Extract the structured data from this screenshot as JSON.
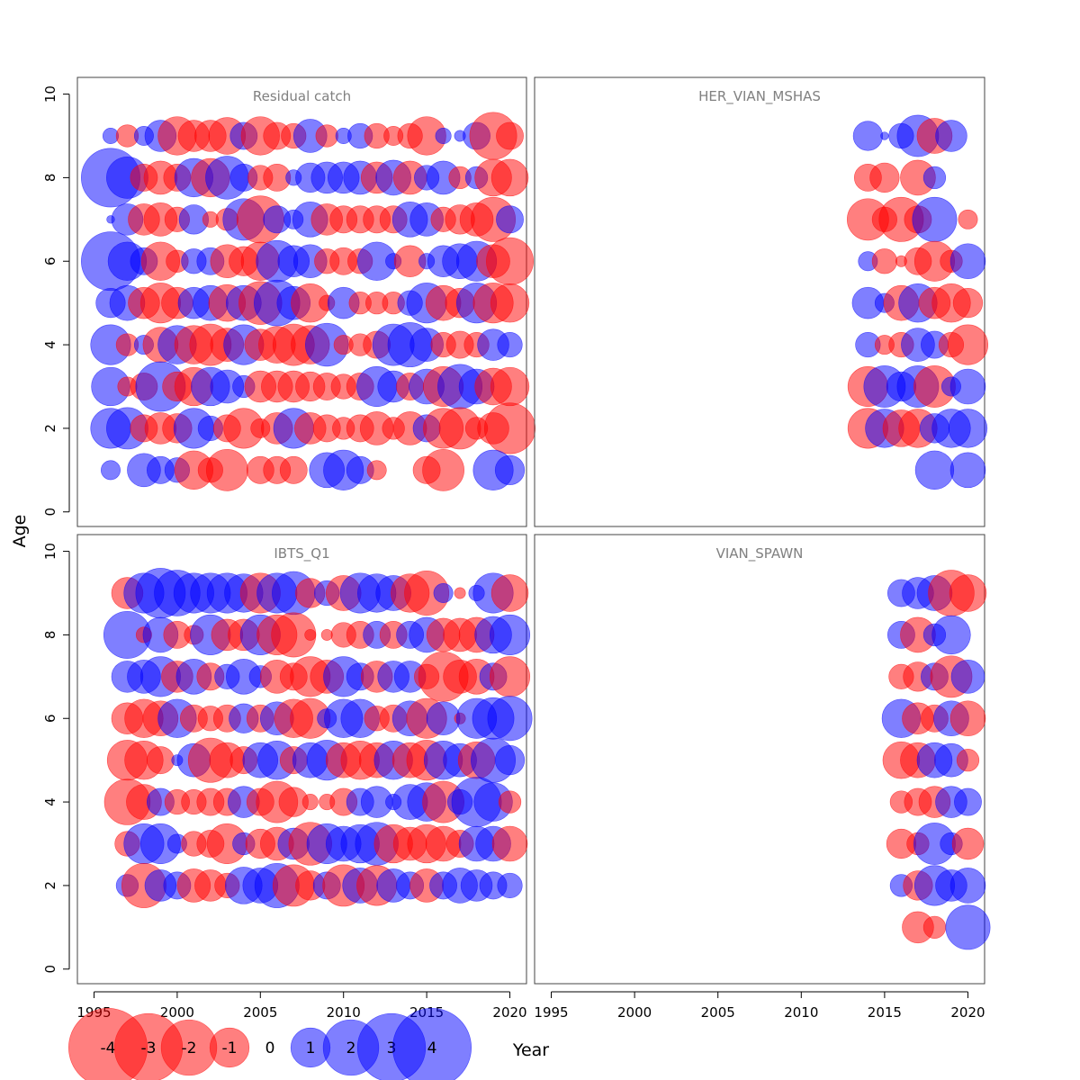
{
  "figure": {
    "y_axis_label": "Age",
    "x_axis_label": "Year",
    "colors": {
      "negative": "#ff0000",
      "positive": "#0000ff",
      "bubble_opacity": 0.5,
      "panel_title": "#808080",
      "frame": "#444444"
    }
  },
  "chart_data": {
    "type": "scatter",
    "subtype": "bubble",
    "xlim": [
      1994,
      2021
    ],
    "ylim": [
      0,
      10
    ],
    "x_ticks": [
      1995,
      2000,
      2005,
      2010,
      2015,
      2020
    ],
    "y_ticks": [
      0,
      2,
      4,
      6,
      8,
      10
    ],
    "grid": false,
    "legend": {
      "position": "bottom-left",
      "entries": [
        {
          "label": "-4",
          "value": -4
        },
        {
          "label": "-3",
          "value": -3
        },
        {
          "label": "-2",
          "value": -2
        },
        {
          "label": "-1",
          "value": -1
        },
        {
          "label": "0",
          "value": 0
        },
        {
          "label": "1",
          "value": 1
        },
        {
          "label": "2",
          "value": 2
        },
        {
          "label": "3",
          "value": 3
        },
        {
          "label": "4",
          "value": 4
        }
      ]
    },
    "panels": [
      {
        "title": "Residual catch",
        "years": [
          1996,
          1997,
          1998,
          1999,
          2000,
          2001,
          2002,
          2003,
          2004,
          2005,
          2006,
          2007,
          2008,
          2009,
          2010,
          2011,
          2012,
          2013,
          2014,
          2015,
          2016,
          2017,
          2018,
          2019,
          2020
        ],
        "ages": {
          "9": [
            0.2,
            -0.4,
            0.3,
            0.8,
            -1.2,
            -0.8,
            -0.8,
            -1.1,
            0.6,
            -1.2,
            -0.6,
            -0.5,
            0.9,
            -0.4,
            0.2,
            0.5,
            -0.5,
            -0.3,
            -0.5,
            -1.2,
            0.2,
            0.1,
            0.6,
            -1.8,
            -0.6
          ],
          "8": [
            2.8,
            1.4,
            -0.6,
            -0.9,
            -0.6,
            1.2,
            -1.2,
            1.5,
            0.6,
            -0.5,
            -0.6,
            0.2,
            0.7,
            0.8,
            0.8,
            0.9,
            -0.8,
            1.0,
            -0.9,
            0.5,
            0.9,
            -0.4,
            0.4,
            -1.1,
            -1.1
          ],
          "7": [
            0.05,
            0.8,
            -0.8,
            -0.9,
            -0.5,
            0.7,
            -0.2,
            -0.4,
            1.4,
            -1.8,
            0.6,
            0.3,
            1.0,
            -0.8,
            -0.6,
            -0.6,
            -0.6,
            -0.6,
            1.0,
            0.9,
            -0.5,
            -0.7,
            -0.9,
            -1.6,
            0.6
          ],
          "6": [
            2.8,
            1.2,
            0.6,
            -1.2,
            -0.4,
            0.5,
            0.6,
            -0.9,
            -0.7,
            -1.2,
            1.4,
            0.8,
            0.9,
            -0.5,
            -0.6,
            -0.5,
            1.2,
            0.2,
            -0.8,
            0.2,
            0.8,
            1.0,
            1.3,
            -0.9,
            -1.8
          ],
          "5": [
            0.7,
            1.0,
            -0.8,
            -1.3,
            -0.8,
            0.8,
            1.0,
            -1.1,
            1.0,
            -1.5,
            1.7,
            0.9,
            -1.2,
            -0.2,
            0.8,
            -0.4,
            -0.4,
            -0.4,
            0.5,
            1.3,
            -1.0,
            -0.7,
            1.3,
            -1.3,
            -1.2
          ],
          "4": [
            1.3,
            -0.4,
            0.3,
            -1.0,
            1.2,
            -1.2,
            -1.4,
            -0.9,
            1.3,
            -0.8,
            -1.1,
            -1.4,
            -1.2,
            1.5,
            -0.3,
            -0.4,
            -0.6,
            1.4,
            1.6,
            0.9,
            -0.5,
            -0.6,
            -0.5,
            0.8,
            0.5
          ],
          "3": [
            1.2,
            -0.3,
            -0.6,
            2.0,
            -0.7,
            -1.2,
            1.2,
            0.9,
            0.4,
            -0.8,
            -0.8,
            -0.8,
            -0.7,
            -0.6,
            -0.5,
            -0.6,
            1.3,
            0.8,
            -0.6,
            1.0,
            -1.3,
            1.6,
            1.0,
            -1.1,
            -1.2
          ],
          "2": [
            1.3,
            1.4,
            -0.6,
            -0.8,
            -0.7,
            1.3,
            0.5,
            -0.6,
            -1.3,
            -0.3,
            -0.8,
            1.3,
            -0.8,
            -0.6,
            -0.4,
            -0.6,
            -0.9,
            -0.4,
            -0.9,
            0.6,
            -1.3,
            -1.4,
            -0.4,
            -0.8,
            -2.1
          ],
          "1": [
            0.3,
            null,
            0.9,
            0.6,
            0.5,
            -1.2,
            -0.5,
            -1.4,
            null,
            -0.6,
            -0.6,
            -0.6,
            null,
            1.0,
            1.3,
            0.6,
            -0.3,
            null,
            null,
            -0.6,
            -1.4,
            null,
            null,
            1.3,
            0.7
          ]
        }
      },
      {
        "title": "HER_VIAN_MSHAS",
        "years": [
          2014,
          2015,
          2016,
          2017,
          2018,
          2019,
          2020
        ],
        "ages": {
          "9": [
            0.7,
            0.05,
            0.5,
            1.4,
            -1.0,
            0.8,
            null
          ],
          "8": [
            -0.6,
            -0.7,
            null,
            -1.0,
            0.4,
            null,
            null
          ],
          "7": [
            -1.4,
            -0.5,
            -1.6,
            -0.6,
            1.6,
            null,
            -0.3
          ],
          "6": [
            0.3,
            -0.5,
            -0.1,
            -0.6,
            -1.3,
            -0.4,
            1.0
          ],
          "5": [
            0.8,
            0.3,
            -1.0,
            1.2,
            -0.8,
            -1.2,
            -0.7
          ],
          "4": [
            0.5,
            -0.3,
            -0.5,
            0.9,
            0.6,
            -0.5,
            -1.3
          ],
          "3": [
            -1.3,
            1.4,
            0.7,
            1.4,
            -1.4,
            0.3,
            1.0
          ],
          "2": [
            -1.3,
            1.2,
            -1.1,
            -1.2,
            0.7,
            1.2,
            1.2
          ],
          "1": [
            null,
            null,
            null,
            null,
            1.2,
            null,
            1.0
          ]
        }
      },
      {
        "title": "IBTS_Q1",
        "years": [
          1997,
          1998,
          1999,
          2000,
          2001,
          2002,
          2003,
          2004,
          2005,
          2006,
          2007,
          2008,
          2009,
          2010,
          2011,
          2012,
          2013,
          2014,
          2015,
          2016,
          2017,
          2018,
          2019,
          2020
        ],
        "ages": {
          "9": [
            -0.8,
            1.3,
            2.0,
            1.7,
            1.3,
            1.3,
            1.3,
            1.2,
            -1.3,
            1.3,
            1.5,
            -0.7,
            0.5,
            -1.0,
            1.3,
            1.2,
            1.0,
            -1.2,
            -1.6,
            0.3,
            -0.1,
            0.2,
            1.3,
            -1.1
          ],
          "8": [
            1.8,
            -0.2,
            1.0,
            -0.6,
            -0.3,
            1.3,
            -0.8,
            -0.8,
            1.3,
            -1.3,
            -1.6,
            -0.1,
            -0.1,
            -0.5,
            -0.6,
            0.6,
            -0.6,
            0.6,
            1.0,
            -0.9,
            -0.9,
            -1.0,
            1.1,
            1.3
          ],
          "7": [
            0.8,
            0.9,
            1.3,
            -0.8,
            1.0,
            -0.6,
            0.5,
            1.0,
            0.4,
            -0.9,
            -0.6,
            -1.3,
            -0.9,
            1.3,
            0.6,
            -0.8,
            0.8,
            0.8,
            -0.5,
            -2.0,
            -0.9,
            -1.0,
            0.6,
            -1.3
          ],
          "6": [
            -0.8,
            -1.2,
            -1.0,
            1.2,
            -0.6,
            -0.5,
            -0.6,
            0.7,
            -0.6,
            0.9,
            -1.2,
            -1.3,
            0.3,
            1.2,
            1.2,
            -0.5,
            -0.6,
            1.0,
            -1.3,
            0.9,
            -0.1,
            1.3,
            1.4,
            1.6
          ],
          "5": [
            -1.3,
            -1.2,
            -0.6,
            0.1,
            0.9,
            -1.6,
            -1.0,
            -0.6,
            1.0,
            1.2,
            -0.6,
            1.0,
            1.3,
            -1.0,
            -1.2,
            -1.0,
            1.2,
            -1.0,
            -1.3,
            1.2,
            0.9,
            -1.1,
            1.6,
            0.7
          ],
          "4": [
            -1.7,
            -1.0,
            0.6,
            -0.5,
            -0.5,
            -0.6,
            -0.6,
            0.8,
            -0.6,
            -1.4,
            -0.7,
            -0.2,
            -0.2,
            -0.6,
            0.6,
            0.8,
            0.2,
            1.0,
            1.2,
            -1.4,
            0.5,
            2.0,
            1.2,
            -0.4
          ],
          "3": [
            -0.5,
            1.3,
            1.3,
            0.3,
            -0.5,
            -0.6,
            -1.3,
            0.4,
            -0.7,
            -0.9,
            0.8,
            -1.5,
            1.3,
            1.0,
            1.2,
            1.5,
            -1.2,
            -0.9,
            -1.2,
            -1.0,
            -0.6,
            1.0,
            1.0,
            -1.0
          ],
          "2": [
            0.4,
            -1.6,
            0.8,
            0.6,
            -0.9,
            -0.8,
            -0.5,
            1.1,
            1.0,
            1.6,
            -1.4,
            -0.7,
            0.6,
            -1.4,
            1.0,
            -1.3,
            0.9,
            0.6,
            -0.9,
            0.6,
            1.0,
            0.8,
            0.6,
            0.5
          ]
        }
      },
      {
        "title": "VIAN_SPAWN",
        "years": [
          2016,
          2017,
          2018,
          2019,
          2020
        ],
        "ages": {
          "9": [
            0.6,
            0.8,
            1.0,
            -1.7,
            -1.1
          ],
          "8": [
            0.6,
            -1.0,
            0.4,
            1.2,
            null
          ],
          "7": [
            -0.5,
            -0.7,
            0.6,
            -1.4,
            0.9
          ],
          "6": [
            1.2,
            -0.8,
            -0.6,
            1.0,
            -1.0
          ],
          "5": [
            -1.1,
            -1.0,
            1.0,
            0.9,
            -0.4
          ],
          "4": [
            -0.4,
            -0.6,
            -0.8,
            0.8,
            0.6
          ],
          "3": [
            -0.7,
            -0.4,
            1.4,
            0.4,
            -0.8
          ],
          "2": [
            0.4,
            -0.7,
            1.3,
            0.8,
            1.0
          ],
          "1": [
            null,
            -0.8,
            -0.4,
            null,
            1.6
          ]
        }
      }
    ]
  }
}
